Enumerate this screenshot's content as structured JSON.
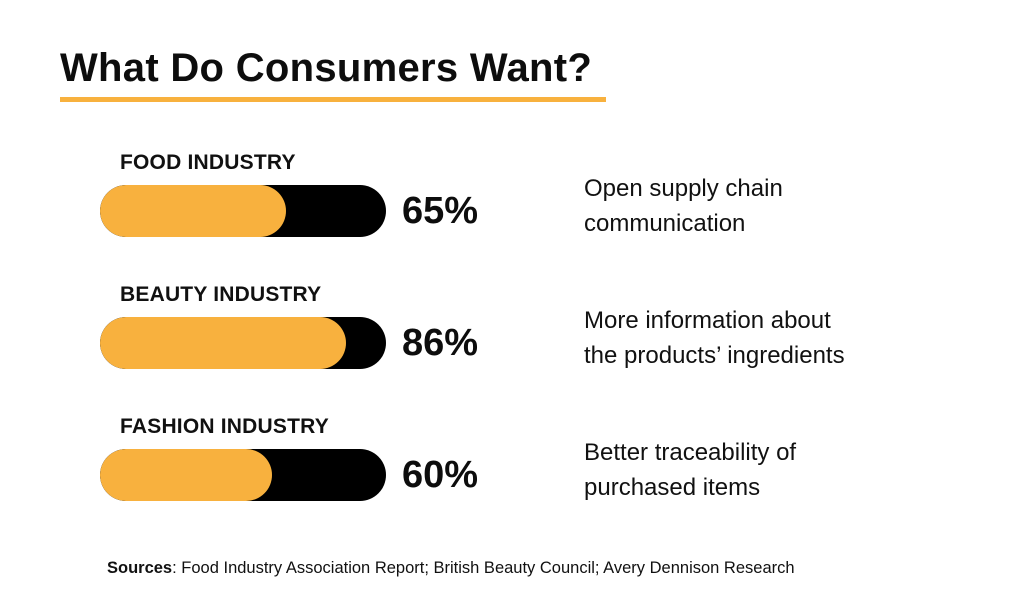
{
  "title": "What Do Consumers Want?",
  "colors": {
    "accent": "#f8b13e",
    "track": "#000000",
    "text": "#111111"
  },
  "chart_data": {
    "type": "bar",
    "title": "What Do Consumers Want?",
    "categories": [
      "FOOD INDUSTRY",
      "BEAUTY INDUSTRY",
      "FASHION INDUSTRY"
    ],
    "values": [
      65,
      86,
      60
    ],
    "unit": "%",
    "ylim": [
      0,
      100
    ]
  },
  "rows": [
    {
      "label": "FOOD INDUSTRY",
      "percent_label": "65%",
      "value": 65,
      "description_lines": [
        "Open supply chain",
        "communication"
      ]
    },
    {
      "label": "BEAUTY INDUSTRY",
      "percent_label": "86%",
      "value": 86,
      "description_lines": [
        "More information about",
        "the products’ ingredients"
      ]
    },
    {
      "label": "FASHION INDUSTRY",
      "percent_label": "60%",
      "value": 60,
      "description_lines": [
        "Better traceability of",
        "purchased items"
      ]
    }
  ],
  "sources": {
    "label": "Sources",
    "text": ": Food Industry Association Report; British Beauty Council; Avery Dennison Research"
  }
}
